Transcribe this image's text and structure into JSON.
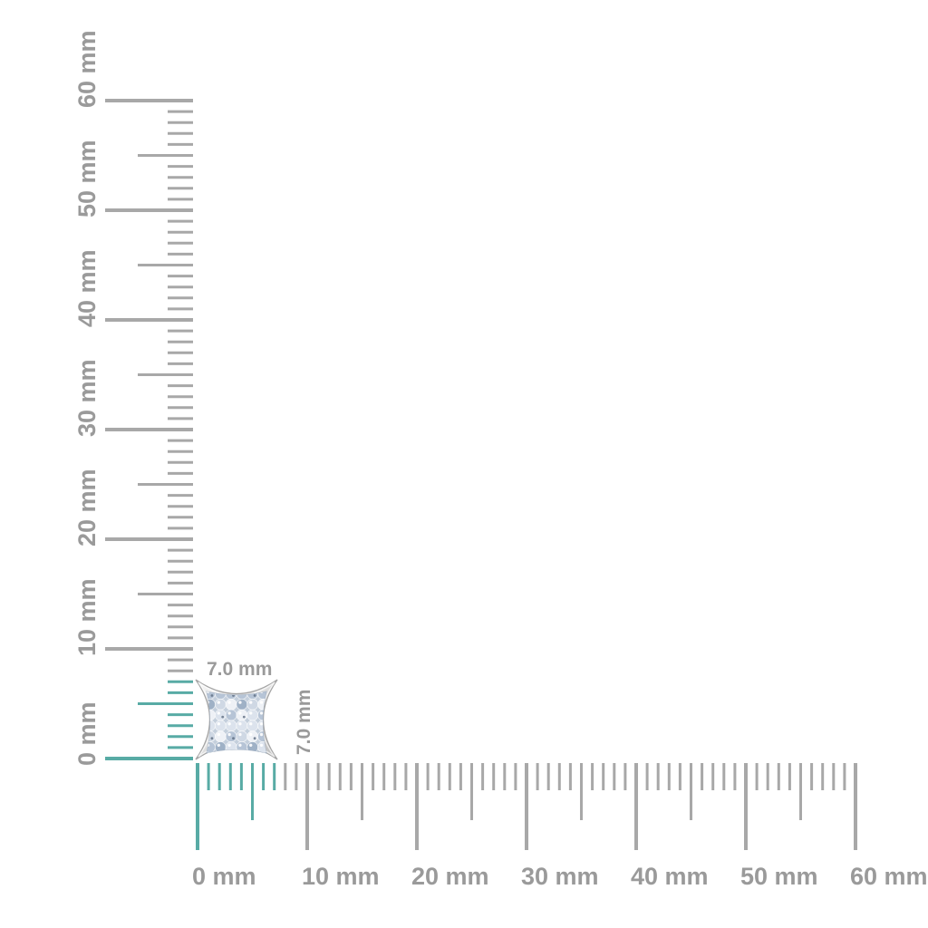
{
  "scene": {
    "background": "#ffffff",
    "unit": "mm"
  },
  "colors": {
    "tick_gray": "#a8a8a8",
    "label_gray": "#9a9a9a",
    "highlight_teal": "#58aba5",
    "metal_light": "#f6f6f6",
    "metal_mid": "#dcdcdc",
    "metal_dark": "#bcbcbc",
    "metal_stroke": "#a5a5a5",
    "pave_base": "#c4cfdc",
    "stone_palette": [
      "#b6c4d6",
      "#dce3ed",
      "#9fb1c6",
      "#cfd8e4",
      "#eef1f6"
    ],
    "stone_speck": "#5c6b80"
  },
  "rulers": {
    "horizontal": {
      "orientation": "horizontal",
      "unit": "mm",
      "min_mm": 0,
      "max_mm": 60,
      "minor_step_mm": 1,
      "medium_step_mm": 5,
      "major_step_mm": 10,
      "labels": [
        "0 mm",
        "10 mm",
        "20 mm",
        "30 mm",
        "40 mm",
        "50 mm",
        "60 mm"
      ],
      "highlighted_range_mm": [
        0,
        7
      ]
    },
    "vertical": {
      "orientation": "vertical",
      "unit": "mm",
      "min_mm": 0,
      "max_mm": 60,
      "minor_step_mm": 1,
      "medium_step_mm": 5,
      "major_step_mm": 10,
      "labels": [
        "0 mm",
        "10 mm",
        "20 mm",
        "30 mm",
        "40 mm",
        "50 mm",
        "60 mm"
      ],
      "highlighted_range_mm": [
        0,
        7
      ]
    }
  },
  "measurement": {
    "width_label": "7.0 mm",
    "height_label": "7.0 mm",
    "width_mm": 7.0,
    "height_mm": 7.0
  }
}
